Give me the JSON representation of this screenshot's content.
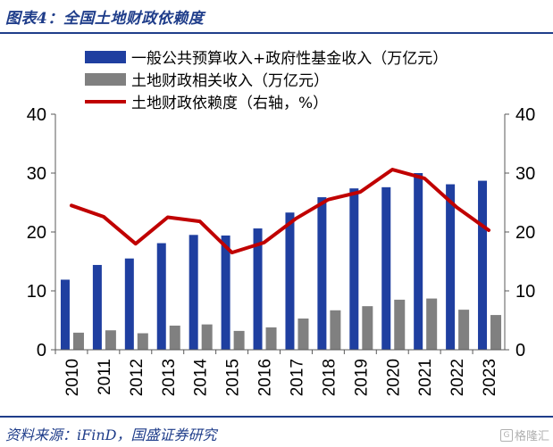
{
  "figure": {
    "title": "图表4：全国土地财政依赖度",
    "source": "资料来源：iFinD，国盛证券研究",
    "watermark": "格隆汇"
  },
  "colors": {
    "bar_primary": "#1f3fa0",
    "bar_secondary": "#808080",
    "line": "#c00000",
    "title": "#1f3d8a"
  },
  "chart_data": {
    "type": "bar",
    "categories": [
      "2010",
      "2011",
      "2012",
      "2013",
      "2014",
      "2015",
      "2016",
      "2017",
      "2018",
      "2019",
      "2020",
      "2021",
      "2022",
      "2023"
    ],
    "series": [
      {
        "name": "一般公共预算收入+政府性基金收入（万亿元）",
        "type": "bar",
        "axis": "left",
        "color": "#1f3fa0",
        "values": [
          11.9,
          14.4,
          15.5,
          18.1,
          19.5,
          19.4,
          20.6,
          23.3,
          25.9,
          27.4,
          27.6,
          30.0,
          28.1,
          28.7
        ]
      },
      {
        "name": "土地财政相关收入（万亿元）",
        "type": "bar",
        "axis": "left",
        "color": "#808080",
        "values": [
          2.9,
          3.3,
          2.8,
          4.1,
          4.3,
          3.2,
          3.8,
          5.3,
          6.7,
          7.4,
          8.5,
          8.7,
          6.8,
          5.9
        ]
      },
      {
        "name": "土地财政依赖度（右轴，%）",
        "type": "line",
        "axis": "right",
        "color": "#c00000",
        "values": [
          24.5,
          22.6,
          18.0,
          22.5,
          21.8,
          16.5,
          18.2,
          22.3,
          25.5,
          26.8,
          30.6,
          29.1,
          24.2,
          20.3
        ]
      }
    ],
    "y_left": {
      "ylim": [
        0,
        40
      ],
      "ticks": [
        "0",
        "10",
        "20",
        "30",
        "40"
      ]
    },
    "y_right": {
      "ylim": [
        0,
        40
      ],
      "ticks": [
        "0",
        "10",
        "20",
        "30",
        "40"
      ]
    },
    "legend_position": "top-center",
    "grid": false
  }
}
